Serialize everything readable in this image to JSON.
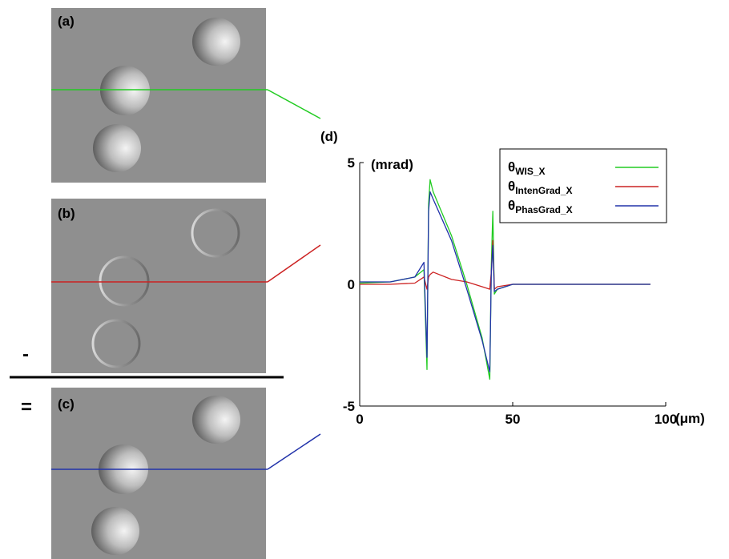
{
  "panels": {
    "a": {
      "label": "(a)"
    },
    "b": {
      "label": "(b)"
    },
    "c": {
      "label": "(c)"
    },
    "d": {
      "label": "(d)"
    }
  },
  "operators": {
    "minus": "-",
    "equals": "="
  },
  "colors": {
    "image_bg": "#8f8f8f",
    "wis": "#22cc22",
    "intengrad": "#cc2222",
    "phasgrad": "#2233aa"
  },
  "chart_data": {
    "type": "line",
    "title": "",
    "xlabel": "(μm)",
    "ylabel": "(mrad)",
    "xlim": [
      0,
      100
    ],
    "ylim": [
      -5,
      5
    ],
    "x_ticks": [
      0,
      50,
      100
    ],
    "y_ticks": [
      -5,
      0,
      5
    ],
    "x_tick_labels": [
      "0",
      "50",
      "100"
    ],
    "y_tick_labels": [
      "-5",
      "0",
      "5"
    ],
    "grid": false,
    "legend_position": "top-right",
    "series": [
      {
        "name_base": "θ",
        "name_sub": "WIS_X",
        "color": "#22cc22",
        "x": [
          0,
          10,
          18,
          21,
          22,
          22.5,
          23,
          24,
          30,
          35,
          40,
          42.5,
          43,
          43.5,
          44,
          45,
          50,
          60,
          70,
          80,
          90,
          95
        ],
        "y": [
          0.05,
          0.1,
          0.3,
          0.6,
          -3.5,
          3.3,
          4.3,
          3.8,
          2.0,
          0.0,
          -2.2,
          -3.9,
          0.8,
          3.0,
          -0.4,
          -0.2,
          0.0,
          0.0,
          0.0,
          0.0,
          0.0,
          0.0
        ]
      },
      {
        "name_base": "θ",
        "name_sub": "IntenGrad_X",
        "color": "#cc2222",
        "x": [
          0,
          10,
          18,
          21,
          22,
          22.5,
          23,
          24,
          30,
          35,
          40,
          42.5,
          43,
          43.5,
          44,
          45,
          50,
          60,
          70,
          80,
          90,
          95
        ],
        "y": [
          0.0,
          0.0,
          0.05,
          0.3,
          -0.2,
          0.3,
          0.4,
          0.5,
          0.2,
          0.1,
          -0.1,
          -0.2,
          0.5,
          1.8,
          -0.2,
          -0.1,
          0.0,
          0.0,
          0.0,
          0.0,
          0.0,
          0.0
        ]
      },
      {
        "name_base": "θ",
        "name_sub": "PhasGrad_X",
        "color": "#2233aa",
        "x": [
          0,
          10,
          18,
          21,
          22,
          22.5,
          23,
          24,
          30,
          35,
          40,
          42.5,
          43,
          43.5,
          44,
          45,
          50,
          60,
          70,
          80,
          90,
          95
        ],
        "y": [
          0.1,
          0.1,
          0.3,
          0.9,
          -3.0,
          3.0,
          3.8,
          3.5,
          1.8,
          -0.2,
          -2.3,
          -3.6,
          0.5,
          1.6,
          -0.3,
          -0.2,
          0.0,
          0.0,
          0.0,
          0.0,
          0.0,
          0.0
        ]
      }
    ]
  }
}
